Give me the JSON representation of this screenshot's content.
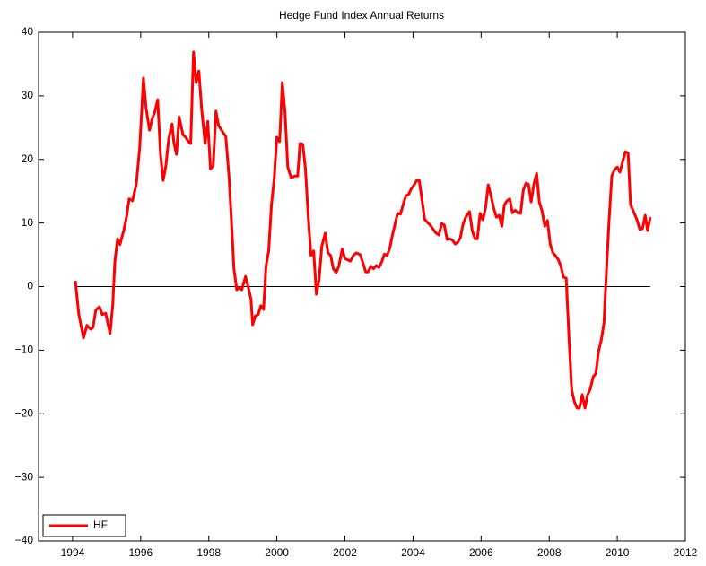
{
  "chart_data": {
    "type": "line",
    "title": "Hedge Fund Index Annual Returns",
    "x": [
      1994.08,
      1994.18,
      1994.32,
      1994.42,
      1994.53,
      1994.6,
      1994.68,
      1994.79,
      1994.87,
      1994.97,
      1995.1,
      1995.18,
      1995.24,
      1995.32,
      1995.39,
      1995.5,
      1995.58,
      1995.66,
      1995.76,
      1995.87,
      1995.97,
      1996.08,
      1996.16,
      1996.26,
      1996.34,
      1996.42,
      1996.5,
      1996.58,
      1996.66,
      1996.74,
      1996.82,
      1996.92,
      1996.97,
      1997.05,
      1997.13,
      1997.24,
      1997.32,
      1997.39,
      1997.47,
      1997.55,
      1997.63,
      1997.71,
      1997.79,
      1997.89,
      1997.97,
      1998.05,
      1998.13,
      1998.21,
      1998.29,
      1998.39,
      1998.5,
      1998.6,
      1998.74,
      1998.82,
      1998.89,
      1998.97,
      1999.08,
      1999.16,
      1999.24,
      1999.29,
      1999.37,
      1999.45,
      1999.53,
      1999.61,
      1999.68,
      1999.76,
      1999.84,
      1999.92,
      2000,
      2000.08,
      2000.16,
      2000.24,
      2000.32,
      2000.42,
      2000.53,
      2000.61,
      2000.68,
      2000.76,
      2000.84,
      2000.92,
      2001,
      2001.08,
      2001.16,
      2001.24,
      2001.32,
      2001.42,
      2001.5,
      2001.58,
      2001.66,
      2001.74,
      2001.82,
      2001.92,
      2002,
      2002.08,
      2002.16,
      2002.26,
      2002.34,
      2002.45,
      2002.53,
      2002.61,
      2002.68,
      2002.76,
      2002.84,
      2002.92,
      2003,
      2003.08,
      2003.16,
      2003.24,
      2003.32,
      2003.39,
      2003.47,
      2003.55,
      2003.63,
      2003.71,
      2003.79,
      2003.87,
      2003.95,
      2004.03,
      2004.11,
      2004.18,
      2004.26,
      2004.34,
      2004.42,
      2004.5,
      2004.58,
      2004.66,
      2004.76,
      2004.84,
      2004.92,
      2005,
      2005.08,
      2005.16,
      2005.24,
      2005.32,
      2005.39,
      2005.47,
      2005.55,
      2005.66,
      2005.74,
      2005.82,
      2005.89,
      2005.97,
      2006.05,
      2006.13,
      2006.21,
      2006.29,
      2006.37,
      2006.45,
      2006.53,
      2006.61,
      2006.68,
      2006.76,
      2006.84,
      2006.92,
      2007,
      2007.08,
      2007.16,
      2007.24,
      2007.32,
      2007.39,
      2007.47,
      2007.55,
      2007.63,
      2007.71,
      2007.79,
      2007.87,
      2007.95,
      2008.03,
      2008.11,
      2008.18,
      2008.26,
      2008.34,
      2008.42,
      2008.5,
      2008.58,
      2008.66,
      2008.74,
      2008.82,
      2008.89,
      2008.97,
      2009.05,
      2009.13,
      2009.21,
      2009.29,
      2009.37,
      2009.45,
      2009.53,
      2009.61,
      2009.68,
      2009.76,
      2009.84,
      2009.92,
      2010,
      2010.08,
      2010.16,
      2010.24,
      2010.32,
      2010.39,
      2010.5,
      2010.58,
      2010.66,
      2010.74,
      2010.82,
      2010.89,
      2010.97
    ],
    "series": [
      {
        "name": "HF",
        "color": "#ff0000",
        "values": [
          0.9,
          -4.3,
          -8.1,
          -6.1,
          -6.7,
          -6.4,
          -3.7,
          -3.2,
          -4.4,
          -4.2,
          -7.4,
          -2.9,
          3.9,
          7.5,
          6.6,
          8.8,
          10.8,
          13.8,
          13.5,
          16.1,
          21.8,
          32.8,
          28,
          24.6,
          26.4,
          27.6,
          29.4,
          20.8,
          16.7,
          19,
          23.2,
          25.6,
          22.8,
          20.8,
          26.7,
          23.9,
          23.5,
          22.9,
          22.5,
          36.9,
          32.1,
          33.9,
          27.9,
          22.5,
          26,
          18.5,
          19,
          27.6,
          25.3,
          24.5,
          23.6,
          16.9,
          2.8,
          -0.5,
          -0.2,
          -0.5,
          1.6,
          -0.1,
          -2,
          -6,
          -4.6,
          -4.4,
          -3,
          -3.6,
          3.2,
          5.6,
          12.9,
          16.9,
          23.5,
          22.8,
          32.1,
          27.4,
          18.8,
          17.1,
          17.4,
          17.4,
          22.5,
          22.4,
          18.5,
          11.2,
          4.9,
          5.6,
          -1.2,
          1.1,
          6.3,
          8.4,
          5.3,
          4.9,
          2.8,
          2.2,
          3.2,
          5.9,
          4.4,
          4.2,
          4,
          5,
          5.3,
          5,
          3.7,
          2.3,
          2.3,
          3.2,
          2.8,
          3.3,
          3,
          3.9,
          5.1,
          4.9,
          6.1,
          8,
          9.8,
          11.5,
          11.4,
          12.9,
          14.3,
          14.5,
          15.4,
          16,
          16.7,
          16.7,
          13.8,
          10.6,
          10.1,
          9.7,
          9.1,
          8.5,
          8.1,
          9.9,
          9.7,
          7.4,
          7.5,
          7.3,
          6.7,
          7,
          7.7,
          9.8,
          10.9,
          11.8,
          8.8,
          7.5,
          7.5,
          11.5,
          10.5,
          12.3,
          16,
          14.3,
          12.3,
          10.9,
          11.2,
          9.5,
          12.8,
          13.5,
          13.8,
          11.6,
          12,
          11.6,
          11.5,
          15.2,
          16.3,
          16.1,
          13.3,
          16.1,
          17.8,
          13.3,
          11.9,
          9.5,
          10.4,
          6.7,
          5.3,
          4.9,
          4.3,
          3.3,
          1.5,
          1.3,
          -7.8,
          -16.3,
          -18.1,
          -19.1,
          -19.1,
          -17,
          -19.1,
          -17,
          -16.1,
          -14.2,
          -13.7,
          -10.2,
          -8.4,
          -5.7,
          2.3,
          10.5,
          17.4,
          18.4,
          18.8,
          18,
          19.7,
          21.2,
          21,
          12.9,
          11.5,
          10.5,
          9,
          9.1,
          11.2,
          8.8,
          10.9
        ]
      }
    ],
    "xlim": [
      1993,
      2012
    ],
    "xticks": [
      1994,
      1996,
      1998,
      2000,
      2002,
      2004,
      2006,
      2008,
      2010,
      2012
    ],
    "ylim": [
      -40,
      40
    ],
    "yticks": [
      {
        "value": -40,
        "label": "−40"
      },
      {
        "value": -30,
        "label": "−30"
      },
      {
        "value": -20,
        "label": "−20"
      },
      {
        "value": -10,
        "label": "−10"
      },
      0,
      10,
      20,
      30,
      40
    ],
    "hline": 0,
    "legend": "lower left"
  }
}
